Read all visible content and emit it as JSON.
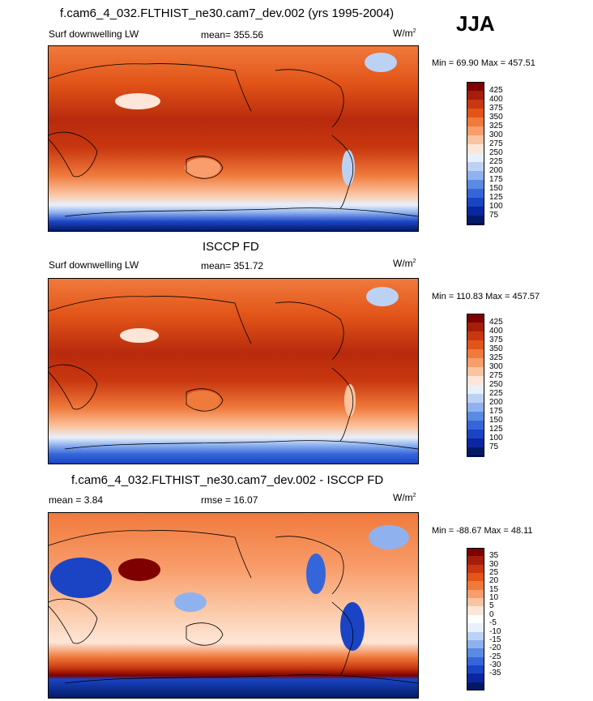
{
  "season": "JJA",
  "panels": [
    {
      "title": "f.cam6_4_032.FLTHIST_ne30.cam7_dev.002 (yrs 1995-2004)",
      "left_label": "Surf downwelling LW",
      "center_label": "mean= 355.56",
      "units": "W/m",
      "units_sup": "2",
      "minmax": "Min =  69.90 Max = 457.51",
      "colorbar": {
        "colors": [
          "#7f0000",
          "#a51e0b",
          "#c8370f",
          "#e25418",
          "#f07a3c",
          "#f89d6b",
          "#fbc4a0",
          "#fde6d7",
          "#e8f0fb",
          "#bcd2f5",
          "#8fb2ee",
          "#5a8ae4",
          "#3566d9",
          "#1a44c4",
          "#0a27a0",
          "#021a66"
        ],
        "ticks": [
          "425",
          "400",
          "375",
          "350",
          "325",
          "300",
          "275",
          "250",
          "225",
          "200",
          "175",
          "150",
          "125",
          "100",
          "75"
        ]
      }
    },
    {
      "title": "ISCCP FD",
      "left_label": "Surf downwelling LW",
      "center_label": "mean= 351.72",
      "units": "W/m",
      "units_sup": "2",
      "minmax": "Min = 110.83 Max = 457.57",
      "colorbar": {
        "colors": [
          "#7f0000",
          "#a51e0b",
          "#c8370f",
          "#e25418",
          "#f07a3c",
          "#f89d6b",
          "#fbc4a0",
          "#fde6d7",
          "#e8f0fb",
          "#bcd2f5",
          "#8fb2ee",
          "#5a8ae4",
          "#3566d9",
          "#1a44c4",
          "#0a27a0",
          "#021a66"
        ],
        "ticks": [
          "425",
          "400",
          "375",
          "350",
          "325",
          "300",
          "275",
          "250",
          "225",
          "200",
          "175",
          "150",
          "125",
          "100",
          "75"
        ]
      }
    },
    {
      "title": "f.cam6_4_032.FLTHIST_ne30.cam7_dev.002 - ISCCP FD",
      "left_label": "mean =   3.84",
      "center_label": "rmse =  16.07",
      "units": "W/m",
      "units_sup": "2",
      "minmax": "Min = -88.67 Max =  48.11",
      "colorbar": {
        "colors": [
          "#7f0000",
          "#a51e0b",
          "#c8370f",
          "#e25418",
          "#f07a3c",
          "#f89d6b",
          "#fbc4a0",
          "#fde6d7",
          "#ffffff",
          "#e8f0fb",
          "#bcd2f5",
          "#8fb2ee",
          "#5a8ae4",
          "#3566d9",
          "#1a44c4",
          "#0a27a0",
          "#021a66"
        ],
        "ticks": [
          "35",
          "30",
          "25",
          "20",
          "15",
          "10",
          "5",
          "0",
          "-5",
          "-10",
          "-15",
          "-20",
          "-25",
          "-30",
          "-35"
        ]
      }
    }
  ]
}
